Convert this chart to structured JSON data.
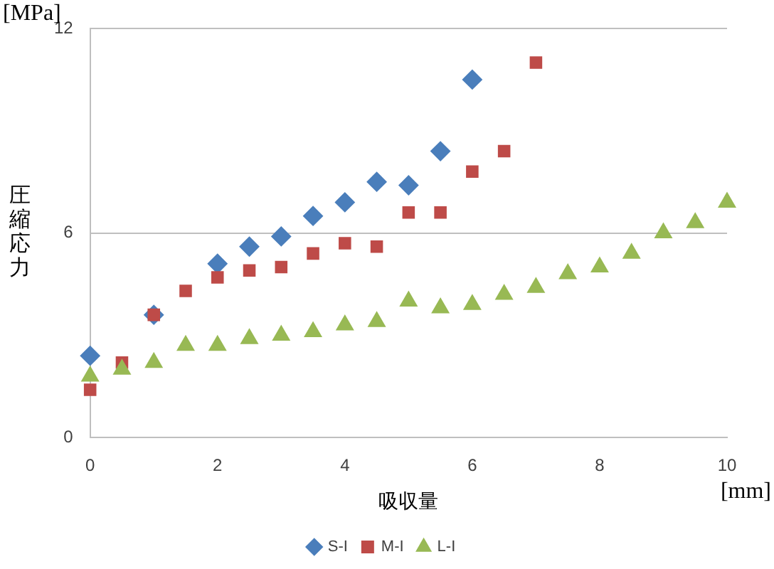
{
  "chart_data": {
    "type": "scatter",
    "xlabel": "吸収量",
    "ylabel": "圧縮応力",
    "annotations": [
      "[MPa]",
      "[mm]"
    ],
    "xlim": [
      0,
      10
    ],
    "xticks": [
      0,
      2,
      4,
      6,
      8,
      10
    ],
    "ylim": [
      0,
      12
    ],
    "yticks": [
      0,
      6,
      12
    ],
    "grid": "y",
    "legend": "bottom",
    "series": [
      {
        "name": "S-I",
        "color": "#4a7ebb",
        "marker": "diamond",
        "x": [
          0,
          1,
          2,
          2.5,
          3,
          3.5,
          4,
          4.5,
          5,
          5.5,
          6
        ],
        "values": [
          2.4,
          3.6,
          5.1,
          5.6,
          5.9,
          6.5,
          6.9,
          7.5,
          7.4,
          8.4,
          10.5
        ]
      },
      {
        "name": "M-I",
        "color": "#be4b48",
        "marker": "square",
        "x": [
          0,
          0.5,
          1,
          1.5,
          2,
          2.5,
          3,
          3.5,
          4,
          4.5,
          5,
          5.5,
          6,
          6.5,
          7
        ],
        "values": [
          1.4,
          2.2,
          3.6,
          4.3,
          4.7,
          4.9,
          5.0,
          5.4,
          5.7,
          5.6,
          6.6,
          6.6,
          7.8,
          8.4,
          11.0
        ]
      },
      {
        "name": "L-I",
        "color": "#98b954",
        "marker": "triangle",
        "x": [
          0,
          0.5,
          1,
          1.5,
          2,
          2.5,
          3,
          3.5,
          4,
          4.5,
          5,
          5.5,
          6,
          6.5,
          7,
          7.5,
          8,
          8.5,
          9,
          9.5,
          10
        ],
        "values": [
          1.8,
          2.0,
          2.2,
          2.7,
          2.7,
          2.9,
          3.0,
          3.1,
          3.3,
          3.4,
          4.0,
          3.8,
          3.9,
          4.2,
          4.4,
          4.8,
          5.0,
          5.4,
          6.0,
          6.3,
          6.9
        ]
      }
    ]
  }
}
